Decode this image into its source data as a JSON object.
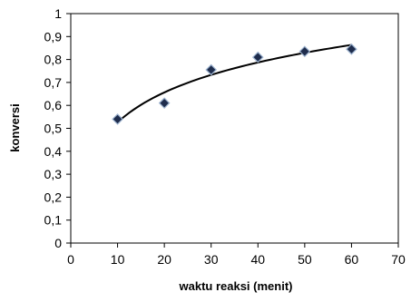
{
  "chart_data": {
    "type": "scatter",
    "title": "",
    "xlabel": "waktu reaksi (menit)",
    "ylabel": "konversi",
    "xlim": [
      0,
      70
    ],
    "ylim": [
      0,
      1
    ],
    "x_ticks": [
      "0",
      "10",
      "20",
      "30",
      "40",
      "50",
      "60",
      "70"
    ],
    "y_ticks": [
      "0",
      "0,1",
      "0,2",
      "0,3",
      "0,4",
      "0,5",
      "0,6",
      "0,7",
      "0,8",
      "0,9",
      "1"
    ],
    "grid": false,
    "legend": "none",
    "series": [
      {
        "marker": "diamond",
        "color": "#000000",
        "x": [
          10,
          20,
          30,
          40,
          50,
          60
        ],
        "y": [
          0.54,
          0.61,
          0.755,
          0.81,
          0.835,
          0.845
        ]
      }
    ],
    "trendline": {
      "type": "logarithmic",
      "x_range": [
        10,
        60
      ],
      "color": "#000000"
    }
  }
}
